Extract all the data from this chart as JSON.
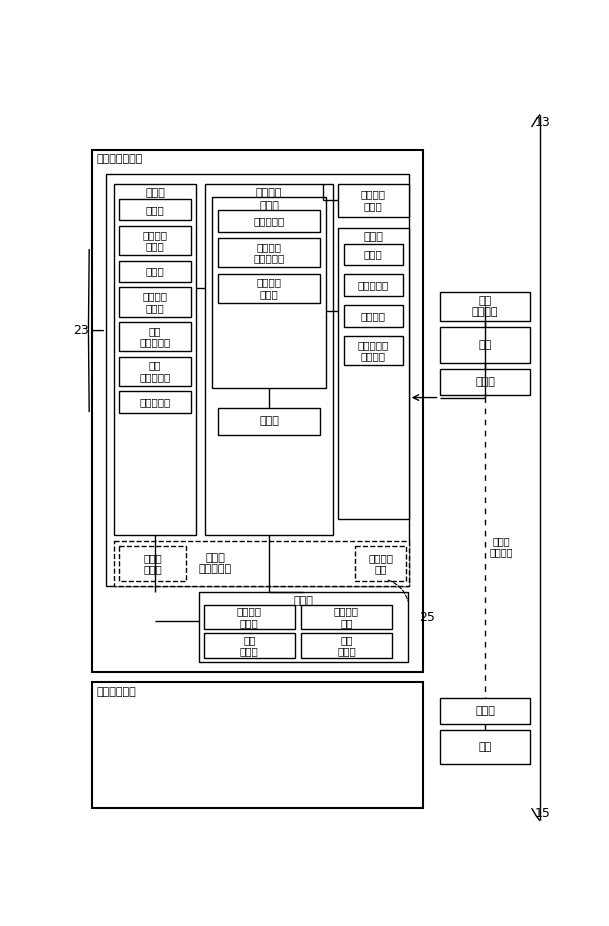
{
  "fig_width": 6.09,
  "fig_height": 9.26,
  "bg_color": "#ffffff",
  "line_color": "#000000",
  "label_13": "13",
  "label_15": "15",
  "label_23": "23",
  "label_25": "25",
  "outer_box1_label": "撮影機能付装置",
  "outer_box2_label": "姿勢変換装置",
  "input_section_label": "入力部",
  "processing_label": "処理装置",
  "control_label": "制御部",
  "ext_memory_label": "外部記憶\nメモリ",
  "output_section_label": "出力部",
  "touch_screen_label": "タッチ\nスクリーン",
  "memory_section_label": "記憶部",
  "boxes_input": [
    "受信部",
    "外部撮像\nカメラ",
    "マイク",
    "自分撮り\nカメラ",
    "電圧\n検出センサ",
    "姿勢\n検出センサ",
    "操作ボタン"
  ],
  "inp_bh_list": [
    28,
    38,
    28,
    38,
    38,
    38,
    28
  ],
  "boxes_control": [
    "画像処理部",
    "音声認識\n対話処理部",
    "電池電圧\n判定部"
  ],
  "ctl_bh_list": [
    28,
    38,
    38
  ],
  "box_calc": "演算部",
  "boxes_output": [
    "送信部",
    "フラッシュ",
    "スピーカ",
    "イアフォン\nジャック"
  ],
  "out_bh_list": [
    28,
    28,
    28,
    38
  ],
  "box_touch_panel": "タッチ\nパネル",
  "box_display": "ディスプ\nレイ",
  "boxes_memory": [
    "画像情報\n記憶部",
    "音声認識\n辞書",
    "音声\n記憶部",
    "情報\n記憶部"
  ],
  "boxes_right": [
    "電源\nスイッチ",
    "電源",
    "受電部"
  ],
  "rb_bh_list": [
    38,
    46,
    34
  ],
  "boxes_bottom": [
    "送電部",
    "電源"
  ],
  "bb_bh_list": [
    34,
    44
  ],
  "label_hi_denso": "非接触\n電力電送"
}
